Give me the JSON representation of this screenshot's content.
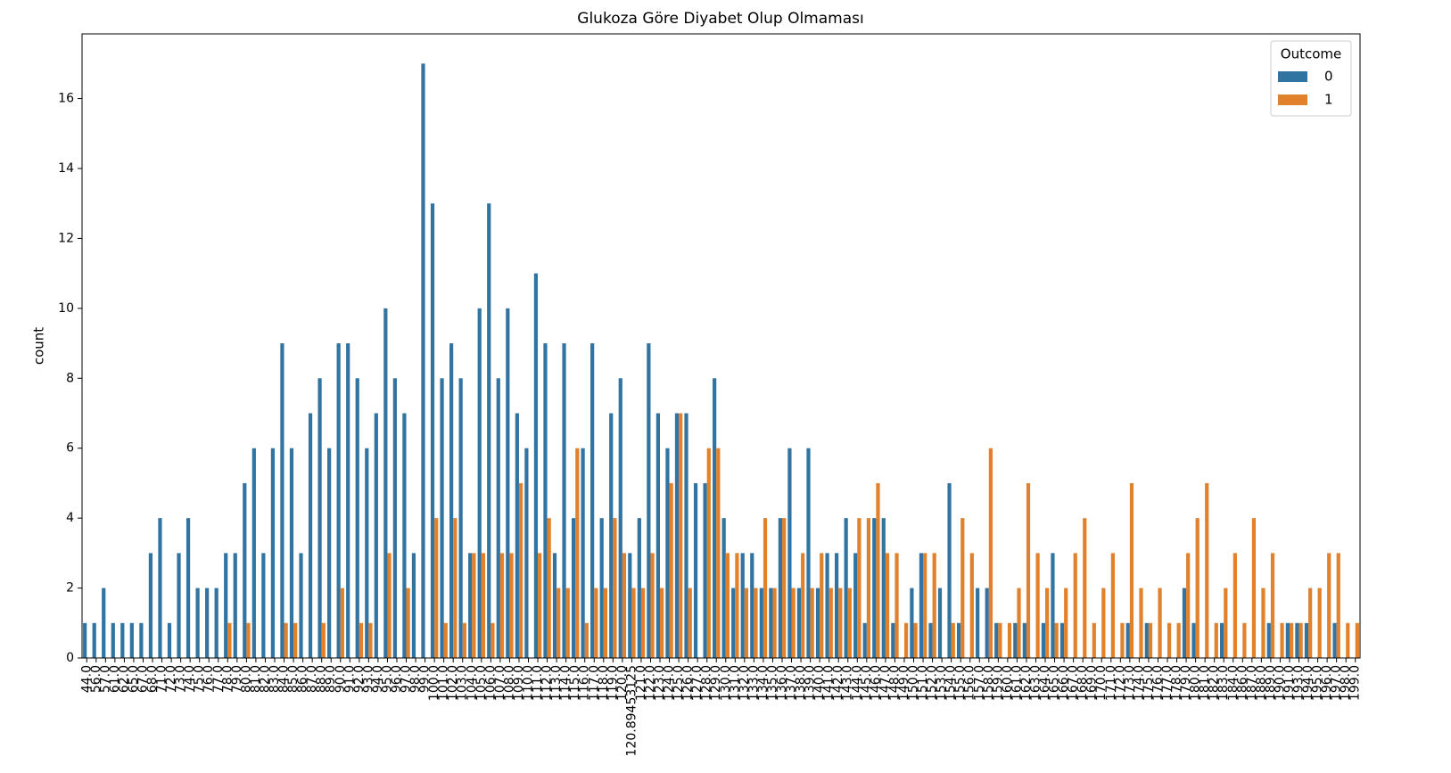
{
  "chart_data": {
    "type": "bar",
    "title": "Glukoza Göre Diyabet Olup Olmaması",
    "y_label": "count",
    "categories": [
      "44.0",
      "56.0",
      "57.0",
      "61.0",
      "62.0",
      "65.0",
      "67.0",
      "68.0",
      "71.0",
      "72.0",
      "73.0",
      "74.0",
      "75.0",
      "76.0",
      "77.0",
      "78.0",
      "79.0",
      "80.0",
      "81.0",
      "82.0",
      "83.0",
      "84.0",
      "85.0",
      "86.0",
      "87.0",
      "88.0",
      "89.0",
      "90.0",
      "91.0",
      "92.0",
      "93.0",
      "94.0",
      "95.0",
      "96.0",
      "97.0",
      "98.0",
      "99.0",
      "100.0",
      "101.0",
      "102.0",
      "103.0",
      "104.0",
      "105.0",
      "106.0",
      "107.0",
      "108.0",
      "109.0",
      "110.0",
      "111.0",
      "112.0",
      "113.0",
      "114.0",
      "115.0",
      "116.0",
      "117.0",
      "118.0",
      "119.0",
      "120.0",
      "120.89453125",
      "121.0",
      "122.0",
      "123.0",
      "124.0",
      "125.0",
      "126.0",
      "127.0",
      "128.0",
      "129.0",
      "130.0",
      "131.0",
      "132.0",
      "133.0",
      "134.0",
      "135.0",
      "136.0",
      "137.0",
      "138.0",
      "139.0",
      "140.0",
      "141.0",
      "142.0",
      "143.0",
      "144.0",
      "145.0",
      "146.0",
      "147.0",
      "148.0",
      "149.0",
      "150.0",
      "151.0",
      "152.0",
      "153.0",
      "154.0",
      "155.0",
      "156.0",
      "157.0",
      "158.0",
      "159.0",
      "160.0",
      "161.0",
      "162.0",
      "163.0",
      "164.0",
      "165.0",
      "166.0",
      "167.0",
      "168.0",
      "169.0",
      "170.0",
      "171.0",
      "172.0",
      "173.0",
      "174.0",
      "175.0",
      "176.0",
      "177.0",
      "178.0",
      "179.0",
      "180.0",
      "181.0",
      "182.0",
      "183.0",
      "184.0",
      "186.0",
      "187.0",
      "188.0",
      "189.0",
      "190.0",
      "191.0",
      "193.0",
      "194.0",
      "195.0",
      "196.0",
      "197.0",
      "198.0",
      "199.0"
    ],
    "series": [
      {
        "name": "0",
        "color": "#3274a1",
        "values": [
          1,
          1,
          2,
          1,
          1,
          1,
          1,
          3,
          4,
          1,
          3,
          4,
          2,
          2,
          2,
          3,
          3,
          5,
          6,
          3,
          6,
          9,
          6,
          3,
          7,
          8,
          6,
          9,
          9,
          8,
          6,
          7,
          10,
          8,
          7,
          3,
          17,
          13,
          8,
          9,
          8,
          3,
          10,
          13,
          8,
          10,
          7,
          6,
          11,
          9,
          3,
          9,
          4,
          6,
          9,
          4,
          7,
          8,
          3,
          4,
          9,
          7,
          6,
          7,
          7,
          5,
          5,
          8,
          4,
          2,
          3,
          3,
          2,
          2,
          4,
          6,
          2,
          6,
          2,
          3,
          3,
          4,
          3,
          1,
          4,
          4,
          1,
          0,
          2,
          3,
          1,
          2,
          5,
          1,
          0,
          2,
          2,
          1,
          0,
          1,
          1,
          0,
          1,
          3,
          1,
          0,
          0,
          0,
          0,
          0,
          0,
          1,
          0,
          1,
          0,
          0,
          0,
          2,
          1,
          0,
          0,
          1,
          0,
          0,
          0,
          0,
          1,
          0,
          1,
          1,
          1,
          0,
          0,
          1,
          0,
          0
        ]
      },
      {
        "name": "1",
        "color": "#e1812c",
        "values": [
          0,
          0,
          0,
          0,
          0,
          0,
          0,
          0,
          0,
          0,
          0,
          0,
          0,
          0,
          0,
          1,
          0,
          1,
          0,
          0,
          0,
          1,
          1,
          0,
          0,
          1,
          0,
          2,
          0,
          1,
          1,
          0,
          3,
          0,
          2,
          0,
          0,
          4,
          1,
          4,
          1,
          3,
          3,
          1,
          3,
          3,
          5,
          0,
          3,
          4,
          2,
          2,
          6,
          1,
          2,
          2,
          4,
          3,
          2,
          2,
          3,
          2,
          5,
          7,
          2,
          0,
          6,
          6,
          3,
          3,
          2,
          2,
          4,
          2,
          4,
          2,
          3,
          2,
          3,
          2,
          2,
          2,
          4,
          4,
          5,
          3,
          3,
          1,
          1,
          3,
          3,
          0,
          1,
          4,
          3,
          0,
          6,
          1,
          1,
          2,
          5,
          3,
          2,
          1,
          2,
          3,
          4,
          1,
          2,
          3,
          1,
          5,
          2,
          1,
          2,
          1,
          1,
          3,
          4,
          5,
          1,
          2,
          3,
          1,
          4,
          2,
          3,
          1,
          1,
          1,
          2,
          2,
          3,
          3,
          1,
          1
        ]
      }
    ],
    "legend_title": "Outcome",
    "legend": "upper right",
    "ylim": [
      0,
      17.85
    ],
    "yticks": [
      0,
      2,
      4,
      6,
      8,
      10,
      12,
      14,
      16
    ]
  }
}
